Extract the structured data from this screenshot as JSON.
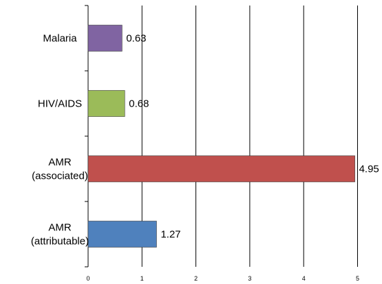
{
  "chart_data": {
    "type": "bar",
    "orientation": "horizontal",
    "categories": [
      "AMR\n(attributable)",
      "AMR\n(associated)",
      "HIV/AIDS",
      "Malaria"
    ],
    "values": [
      1.27,
      4.95,
      0.68,
      0.63
    ],
    "value_labels": [
      "1.27",
      "4.95",
      "0.68",
      "0.63"
    ],
    "bar_colors": [
      "#4f81bd",
      "#c0504d",
      "#9bbb59",
      "#8064a2"
    ],
    "xlim": [
      0,
      5
    ],
    "x_ticks": [
      "0",
      "1",
      "2",
      "3",
      "4",
      "5"
    ],
    "grid": "vertical",
    "legend": "none",
    "title": "",
    "xlabel": "",
    "ylabel": ""
  }
}
